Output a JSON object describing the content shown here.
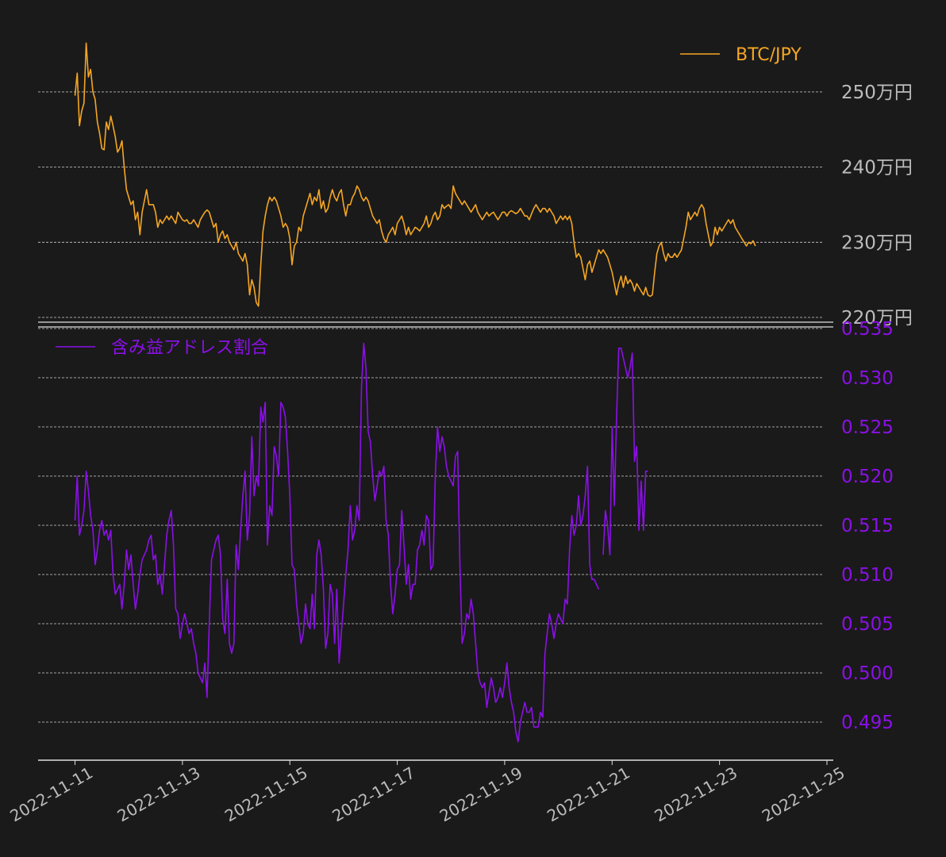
{
  "chart_data": [
    {
      "type": "line",
      "title": "",
      "legend": {
        "label": "BTC/JPY",
        "position": "top-right"
      },
      "color": "#f5a623",
      "ylim": [
        220,
        257
      ],
      "y_ticks": [
        250,
        240,
        230,
        220
      ],
      "y_tick_labels": [
        "250万円",
        "240万円",
        "230万円",
        "220万円"
      ],
      "y_unit": "万円",
      "grid": true,
      "x_start": "2022-11-11T00:00",
      "step_hours": 1,
      "series": [
        {
          "name": "BTC/JPY",
          "values": [
            249.5,
            252.5,
            245.5,
            247.5,
            248.5,
            256.5,
            252.0,
            253.0,
            250.0,
            249.0,
            246.0,
            244.5,
            242.5,
            242.3,
            246.0,
            245.0,
            246.8,
            245.5,
            244.0,
            242.0,
            242.5,
            243.5,
            240.0,
            237.0,
            236.0,
            235.0,
            235.5,
            233.0,
            234.0,
            231.0,
            234.0,
            235.5,
            237.0,
            235.0,
            235.0,
            235.0,
            234.0,
            232.0,
            233.0,
            232.5,
            233.0,
            233.5,
            233.0,
            233.5,
            233.0,
            232.5,
            234.0,
            233.5,
            233.0,
            232.8,
            233.0,
            232.5,
            232.5,
            233.0,
            232.5,
            232.0,
            233.0,
            233.5,
            234.0,
            234.3,
            234.0,
            233.0,
            232.0,
            232.5,
            230.0,
            231.0,
            231.5,
            230.5,
            231.0,
            230.0,
            229.5,
            229.0,
            230.0,
            228.5,
            228.0,
            227.5,
            228.5,
            227.0,
            223.0,
            225.0,
            224.0,
            222.0,
            221.5,
            227.0,
            231.5,
            233.5,
            235.0,
            236.0,
            235.5,
            236.0,
            235.5,
            234.5,
            233.5,
            232.0,
            232.5,
            232.0,
            230.5,
            227.0,
            229.5,
            230.0,
            232.0,
            231.5,
            233.5,
            234.5,
            235.5,
            236.5,
            235.0,
            236.0,
            235.5,
            237.0,
            234.5,
            235.5,
            234.0,
            234.5,
            236.0,
            237.0,
            236.0,
            235.5,
            236.5,
            237.0,
            235.0,
            233.5,
            235.0,
            235.0,
            236.0,
            236.5,
            237.5,
            237.0,
            236.0,
            235.5,
            236.0,
            235.5,
            234.5,
            233.5,
            233.0,
            232.5,
            233.0,
            231.5,
            230.5,
            230.0,
            231.0,
            231.5,
            232.0,
            231.0,
            232.5,
            233.0,
            233.5,
            232.5,
            231.0,
            232.0,
            231.0,
            231.5,
            232.0,
            231.8,
            231.5,
            232.0,
            232.5,
            233.5,
            232.0,
            232.5,
            233.5,
            234.0,
            233.0,
            233.5,
            235.0,
            234.5,
            234.8,
            235.0,
            234.5,
            237.5,
            236.5,
            236.0,
            235.5,
            235.0,
            235.5,
            235.0,
            234.5,
            234.0,
            234.5,
            235.0,
            234.0,
            233.5,
            233.0,
            233.5,
            234.0,
            233.5,
            233.8,
            234.0,
            233.5,
            233.0,
            233.5,
            234.0,
            234.0,
            233.5,
            234.0,
            234.2,
            234.0,
            233.8,
            234.0,
            234.5,
            234.0,
            233.5,
            233.5,
            233.0,
            233.8,
            234.5,
            235.0,
            234.5,
            234.0,
            234.5,
            234.5,
            234.0,
            234.5,
            234.0,
            233.5,
            232.5,
            233.0,
            233.5,
            233.0,
            233.5,
            233.0,
            233.5,
            232.5,
            230.0,
            228.0,
            228.5,
            228.0,
            226.5,
            225.0,
            227.0,
            227.5,
            226.0,
            227.0,
            228.0,
            229.0,
            228.5,
            229.0,
            228.5,
            228.0,
            227.0,
            226.0,
            224.5,
            223.0,
            224.5,
            225.5,
            224.0,
            225.5,
            224.5,
            225.0,
            224.5,
            223.5,
            224.5,
            224.0,
            223.5,
            223.0,
            224.0,
            223.0,
            222.8,
            223.0,
            226.0,
            228.5,
            229.5,
            230.0,
            228.5,
            227.5,
            228.5,
            228.0,
            228.0,
            228.5,
            228.0,
            228.5,
            229.0,
            230.5,
            232.0,
            234.0,
            233.0,
            233.5,
            234.0,
            233.5,
            234.5,
            235.0,
            234.5,
            232.5,
            231.0,
            229.5,
            230.0,
            232.0,
            231.0,
            232.0,
            231.5,
            232.0,
            232.5,
            233.0,
            232.5,
            233.0,
            232.0,
            231.5,
            231.0,
            230.5,
            230.0,
            229.5,
            230.0,
            229.8,
            230.2,
            229.5
          ]
        },
        {
          "name": "_placeholder",
          "values": []
        }
      ]
    },
    {
      "type": "line",
      "title": "",
      "legend": {
        "label": "含み益アドレス割合",
        "position": "top-left"
      },
      "color": "#8b10e8",
      "ylim": [
        0.4915,
        0.5355
      ],
      "y_ticks": [
        0.535,
        0.53,
        0.525,
        0.52,
        0.515,
        0.51,
        0.505,
        0.5,
        0.495
      ],
      "y_tick_labels": [
        "0.535",
        "0.530",
        "0.525",
        "0.520",
        "0.515",
        "0.510",
        "0.505",
        "0.500",
        "0.495"
      ],
      "grid": true,
      "x_start": "2022-11-11T00:00",
      "step_hours": 1,
      "series": [
        {
          "name": "含み益アドレス割合",
          "values": [
            0.5155,
            0.52,
            0.514,
            0.515,
            0.5165,
            0.5205,
            0.5185,
            0.516,
            0.5145,
            0.511,
            0.5125,
            0.5145,
            0.5155,
            0.514,
            0.5145,
            0.5135,
            0.5145,
            0.51,
            0.508,
            0.5085,
            0.509,
            0.5065,
            0.509,
            0.5125,
            0.5105,
            0.512,
            0.509,
            0.5065,
            0.508,
            0.51,
            0.5115,
            0.512,
            0.5125,
            0.5135,
            0.514,
            0.5115,
            0.512,
            0.509,
            0.51,
            0.508,
            0.511,
            0.514,
            0.5155,
            0.5165,
            0.513,
            0.5065,
            0.506,
            0.5035,
            0.505,
            0.506,
            0.505,
            0.504,
            0.5045,
            0.503,
            0.502,
            0.5,
            0.4995,
            0.499,
            0.501,
            0.4975,
            0.505,
            0.5115,
            0.5125,
            0.5135,
            0.514,
            0.512,
            0.5055,
            0.504,
            0.5095,
            0.503,
            0.502,
            0.503,
            0.513,
            0.5105,
            0.5145,
            0.518,
            0.5205,
            0.5135,
            0.516,
            0.524,
            0.518,
            0.52,
            0.519,
            0.527,
            0.5255,
            0.5275,
            0.513,
            0.517,
            0.516,
            0.523,
            0.522,
            0.52,
            0.5275,
            0.527,
            0.526,
            0.5225,
            0.518,
            0.511,
            0.5105,
            0.507,
            0.505,
            0.503,
            0.504,
            0.507,
            0.505,
            0.5045,
            0.508,
            0.5045,
            0.512,
            0.5135,
            0.512,
            0.5085,
            0.5025,
            0.504,
            0.509,
            0.508,
            0.503,
            0.5085,
            0.501,
            0.504,
            0.507,
            0.51,
            0.5125,
            0.517,
            0.5135,
            0.5145,
            0.517,
            0.5155,
            0.529,
            0.5335,
            0.531,
            0.5245,
            0.5235,
            0.52,
            0.5175,
            0.519,
            0.5205,
            0.52,
            0.521,
            0.5155,
            0.514,
            0.509,
            0.506,
            0.508,
            0.5105,
            0.511,
            0.5165,
            0.513,
            0.509,
            0.511,
            0.5075,
            0.509,
            0.509,
            0.5125,
            0.513,
            0.5145,
            0.513,
            0.516,
            0.5155,
            0.5105,
            0.511,
            0.52,
            0.525,
            0.5225,
            0.524,
            0.523,
            0.521,
            0.52,
            0.5195,
            0.519,
            0.522,
            0.5225,
            0.511,
            0.503,
            0.504,
            0.506,
            0.5055,
            0.5075,
            0.506,
            0.503,
            0.5,
            0.499,
            0.4985,
            0.499,
            0.4965,
            0.498,
            0.4995,
            0.4985,
            0.497,
            0.4975,
            0.4985,
            0.4975,
            0.499,
            0.501,
            0.4985,
            0.497,
            0.496,
            0.494,
            0.493,
            0.495,
            0.496,
            0.497,
            0.496,
            0.496,
            0.4965,
            0.4945,
            0.4945,
            0.4945,
            0.496,
            0.4955,
            0.502,
            0.504,
            0.506,
            0.505,
            0.5035,
            0.505,
            0.506,
            0.5055,
            0.505,
            0.5075,
            0.507,
            0.5125,
            0.516,
            0.514,
            0.515,
            0.518,
            0.515,
            0.516,
            0.518,
            0.521,
            0.511,
            0.5095,
            0.5095,
            0.509,
            0.5085,
            null,
            0.512,
            0.5165,
            0.515,
            0.512,
            0.525,
            0.517,
            0.526,
            0.533,
            0.533,
            0.532,
            0.531,
            0.53,
            0.531,
            0.5325,
            0.5215,
            0.523,
            0.5145,
            0.5195,
            0.5145,
            0.5205,
            0.5205
          ]
        }
      ]
    }
  ],
  "x_axis": {
    "tick_labels": [
      "2022-11-11",
      "2022-11-13",
      "2022-11-15",
      "2022-11-17",
      "2022-11-19",
      "2022-11-21",
      "2022-11-23",
      "2022-11-25"
    ],
    "start": "2022-11-11",
    "end": "2022-11-25",
    "tick_step_days": 2
  }
}
